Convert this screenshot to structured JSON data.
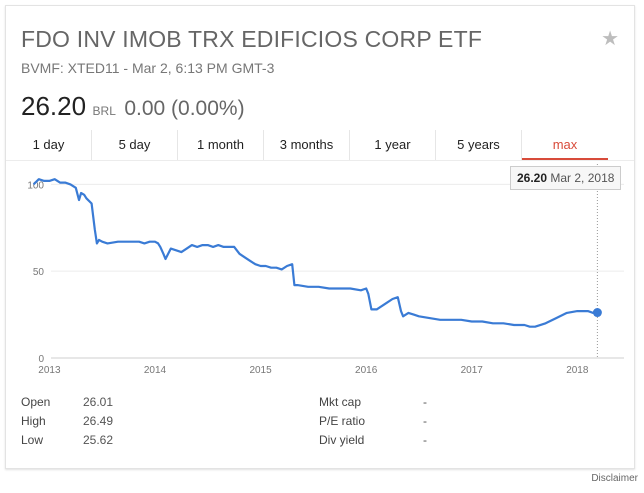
{
  "header": {
    "title": "FDO INV IMOB TRX EDIFICIOS CORP ETF",
    "subtitle": "BVMF: XTED11 - Mar 2, 6:13 PM GMT-3",
    "star_icon": "star-icon"
  },
  "quote": {
    "price": "26.20",
    "currency": "BRL",
    "change": "0.00 (0.00%)"
  },
  "tabs": [
    {
      "label": "1 day"
    },
    {
      "label": "5 day"
    },
    {
      "label": "1 month"
    },
    {
      "label": "3 months"
    },
    {
      "label": "1 year"
    },
    {
      "label": "5 years"
    },
    {
      "label": "max",
      "active": true
    }
  ],
  "tooltip": {
    "value": "26.20",
    "date": "Mar 2, 2018"
  },
  "stats": {
    "left": [
      {
        "label": "Open",
        "value": "26.01"
      },
      {
        "label": "High",
        "value": "26.49"
      },
      {
        "label": "Low",
        "value": "25.62"
      }
    ],
    "right": [
      {
        "label": "Mkt cap",
        "value": "-"
      },
      {
        "label": "P/E ratio",
        "value": "-"
      },
      {
        "label": "Div yield",
        "value": "-"
      }
    ]
  },
  "footer": {
    "disclaimer": "Disclaimer"
  },
  "colors": {
    "line": "#3a7bd5",
    "active_tab": "#d84b3a"
  },
  "chart_data": {
    "type": "line",
    "ylim": [
      0,
      110
    ],
    "y_ticks": [
      0,
      50,
      100
    ],
    "xlim": [
      2012.75,
      2018.3
    ],
    "x_ticks": [
      2013,
      2014,
      2015,
      2016,
      2017,
      2018
    ],
    "grid": true,
    "series": [
      {
        "x": [
          2012.85,
          2012.9,
          2012.95,
          2013.0,
          2013.05,
          2013.1,
          2013.15,
          2013.2,
          2013.25,
          2013.28,
          2013.3,
          2013.33,
          2013.35,
          2013.4,
          2013.43,
          2013.45,
          2013.47,
          2013.5,
          2013.55,
          2013.65,
          2013.75,
          2013.85,
          2013.9,
          2013.95,
          2014.0,
          2014.03,
          2014.05,
          2014.08,
          2014.1,
          2014.15,
          2014.2,
          2014.25,
          2014.3,
          2014.35,
          2014.4,
          2014.45,
          2014.5,
          2014.55,
          2014.6,
          2014.65,
          2014.7,
          2014.75,
          2014.8,
          2014.85,
          2014.9,
          2014.95,
          2015.0,
          2015.05,
          2015.1,
          2015.15,
          2015.2,
          2015.25,
          2015.3,
          2015.32,
          2015.35,
          2015.45,
          2015.55,
          2015.65,
          2015.75,
          2015.85,
          2015.95,
          2016.0,
          2016.02,
          2016.05,
          2016.1,
          2016.15,
          2016.2,
          2016.25,
          2016.3,
          2016.33,
          2016.35,
          2016.4,
          2016.45,
          2016.5,
          2016.6,
          2016.7,
          2016.8,
          2016.9,
          2017.0,
          2017.1,
          2017.2,
          2017.3,
          2017.4,
          2017.5,
          2017.55,
          2017.6,
          2017.7,
          2017.8,
          2017.9,
          2018.0,
          2018.05,
          2018.1,
          2018.15,
          2018.19
        ],
        "y": [
          100,
          103,
          102,
          102,
          103,
          101,
          101,
          100,
          98,
          91,
          95,
          94,
          92,
          89,
          74,
          66,
          68,
          67,
          66,
          67,
          67,
          67,
          66,
          67,
          67,
          66,
          64,
          60,
          57,
          63,
          62,
          61,
          63,
          65,
          64,
          65,
          65,
          64,
          65,
          64,
          64,
          64,
          60,
          58,
          56,
          54,
          53,
          53,
          52,
          52,
          51,
          53,
          54,
          42,
          42,
          41,
          41,
          40,
          40,
          40,
          39,
          40,
          37,
          28,
          28,
          30,
          32,
          34,
          35,
          27,
          24,
          26,
          25,
          24,
          23,
          22,
          22,
          22,
          21,
          21,
          20,
          20,
          19,
          19,
          18,
          18,
          20,
          23,
          26,
          27,
          27,
          27,
          26,
          26.2
        ]
      }
    ]
  }
}
